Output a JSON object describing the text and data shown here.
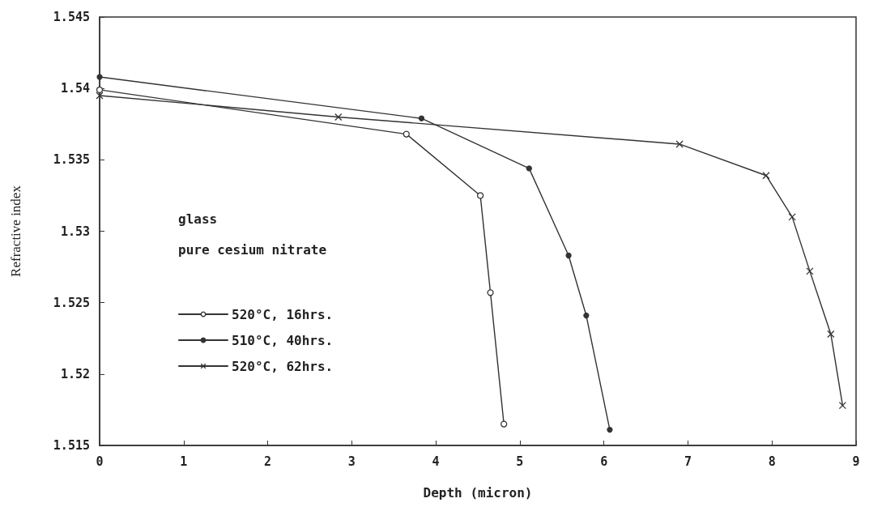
{
  "chart_data": {
    "type": "line",
    "xlabel": "Depth (micron)",
    "ylabel": "Refractive index",
    "annotations": [
      "glass",
      "pure cesium nitrate"
    ],
    "series": [
      {
        "name": "520°C, 16hrs.",
        "color": "#333333",
        "marker": "circle",
        "x": [
          0,
          3.65,
          4.53,
          4.65,
          4.81
        ],
        "values": [
          1.5399,
          1.5368,
          1.5325,
          1.5257,
          1.5165
        ]
      },
      {
        "name": "510°C, 40hrs.",
        "color": "#333333",
        "marker": "filled-circle",
        "x": [
          0,
          3.83,
          5.11,
          5.58,
          5.79,
          6.07
        ],
        "values": [
          1.5408,
          1.5379,
          1.5344,
          1.5283,
          1.5241,
          1.5161
        ]
      },
      {
        "name": "520°C, 62hrs.",
        "color": "#333333",
        "marker": "cross",
        "x": [
          0,
          2.84,
          6.9,
          7.93,
          8.24,
          8.45,
          8.7,
          8.84
        ],
        "values": [
          1.5395,
          1.538,
          1.5361,
          1.5339,
          1.531,
          1.5272,
          1.5228,
          1.5178
        ]
      }
    ],
    "xlim": [
      0,
      9
    ],
    "xticks": [
      0,
      1,
      2,
      3,
      4,
      5,
      6,
      7,
      8,
      9
    ],
    "ylim": [
      1.515,
      1.545
    ],
    "yticks": [
      1.515,
      1.52,
      1.525,
      1.53,
      1.535,
      1.54,
      1.545
    ],
    "grid": false,
    "legend": "bottom left",
    "line_style": "solid"
  }
}
